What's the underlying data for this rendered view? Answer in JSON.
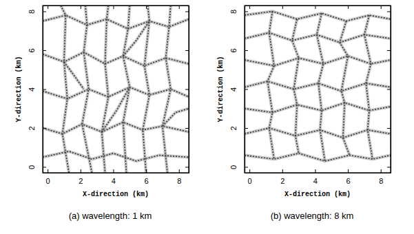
{
  "chart_data": [
    {
      "type": "line",
      "title": "(a) wavelength: 1 km",
      "xlabel": "X-direction (km)",
      "ylabel": "Y-direction (km)",
      "xlim": [
        -0.3,
        8.6
      ],
      "ylim": [
        -0.3,
        8.3
      ],
      "xticks": [
        0,
        2,
        4,
        6,
        8
      ],
      "yticks": [
        0,
        2,
        4,
        6,
        8
      ],
      "color": "#858585",
      "series": [
        {
          "x": [
            -0.3,
            1.1,
            2.4,
            3.6,
            4.9,
            6.2,
            7.4,
            8.6
          ],
          "values": [
            7.5,
            7.8,
            7.3,
            7.6,
            7.1,
            7.5,
            7.2,
            7.6
          ]
        },
        {
          "x": [
            -0.3,
            1.0,
            2.2,
            3.5,
            4.6,
            5.9,
            7.2,
            8.6
          ],
          "values": [
            5.8,
            5.4,
            5.9,
            5.3,
            5.7,
            5.2,
            5.6,
            5.3
          ]
        },
        {
          "x": [
            -0.3,
            1.2,
            2.5,
            3.7,
            5.0,
            6.2,
            7.5,
            8.6
          ],
          "values": [
            3.9,
            3.5,
            4.0,
            3.6,
            4.1,
            3.7,
            4.0,
            3.6
          ]
        },
        {
          "x": [
            -0.3,
            0.9,
            2.1,
            3.3,
            4.6,
            5.8,
            7.0,
            8.6
          ],
          "values": [
            2.0,
            1.7,
            2.2,
            1.8,
            2.3,
            1.9,
            2.1,
            1.8
          ]
        },
        {
          "x": [
            -0.3,
            1.3,
            2.7,
            4.0,
            5.4,
            6.8,
            8.6
          ],
          "values": [
            0.5,
            0.8,
            0.4,
            0.7,
            0.3,
            0.6,
            0.5
          ]
        },
        {
          "x": [
            0.8,
            1.1,
            1.0,
            1.2,
            0.9,
            1.3
          ],
          "values": [
            8.3,
            7.8,
            5.4,
            3.5,
            1.7,
            -0.3
          ]
        },
        {
          "x": [
            2.3,
            2.4,
            2.2,
            2.5,
            2.1,
            2.7
          ],
          "values": [
            8.3,
            7.3,
            5.9,
            4.0,
            2.2,
            -0.3
          ]
        },
        {
          "x": [
            3.7,
            3.6,
            3.5,
            3.7,
            3.3,
            3.5
          ],
          "values": [
            8.3,
            7.6,
            5.3,
            3.6,
            1.8,
            -0.3
          ]
        },
        {
          "x": [
            5.0,
            4.9,
            4.6,
            5.0,
            4.6,
            4.8
          ],
          "values": [
            8.3,
            7.1,
            5.7,
            4.1,
            2.3,
            -0.3
          ]
        },
        {
          "x": [
            6.1,
            6.2,
            5.9,
            6.2,
            5.8,
            6.0
          ],
          "values": [
            8.3,
            7.5,
            5.2,
            3.7,
            1.9,
            -0.3
          ]
        },
        {
          "x": [
            7.5,
            7.4,
            7.2,
            7.5,
            7.0,
            7.3
          ],
          "values": [
            8.3,
            7.2,
            5.6,
            4.0,
            2.1,
            -0.3
          ]
        },
        {
          "x": [
            1.0,
            1.7,
            2.2
          ],
          "values": [
            5.4,
            4.6,
            4.0
          ]
        },
        {
          "x": [
            4.6,
            5.4,
            6.2
          ],
          "values": [
            5.7,
            6.5,
            7.5
          ]
        },
        {
          "x": [
            3.3,
            4.2,
            5.0
          ],
          "values": [
            1.8,
            2.9,
            4.1
          ]
        },
        {
          "x": [
            7.0,
            7.8,
            8.6
          ],
          "values": [
            2.1,
            2.8,
            3.0
          ]
        }
      ]
    },
    {
      "type": "line",
      "title": "(b) wavelength: 8 km",
      "xlabel": "X-direction (km)",
      "ylabel": "Y-direction (km)",
      "xlim": [
        -0.3,
        8.6
      ],
      "ylim": [
        -0.3,
        8.3
      ],
      "xticks": [
        0,
        2,
        4,
        6,
        8
      ],
      "yticks": [
        0,
        2,
        4,
        6,
        8
      ],
      "color": "#858585",
      "series": [
        {
          "x": [
            -0.3,
            1.4,
            2.9,
            4.4,
            5.9,
            7.3,
            8.6
          ],
          "values": [
            7.8,
            8.0,
            7.6,
            7.9,
            7.5,
            7.8,
            7.6
          ]
        },
        {
          "x": [
            -0.3,
            1.2,
            2.6,
            4.1,
            5.5,
            7.0,
            8.6
          ],
          "values": [
            6.6,
            6.9,
            6.5,
            6.8,
            6.4,
            6.8,
            6.6
          ]
        },
        {
          "x": [
            -0.3,
            1.5,
            3.0,
            4.5,
            6.0,
            7.4,
            8.6
          ],
          "values": [
            5.5,
            5.2,
            5.6,
            5.3,
            5.7,
            5.3,
            5.5
          ]
        },
        {
          "x": [
            -0.3,
            1.1,
            2.7,
            4.2,
            5.6,
            7.1,
            8.6
          ],
          "values": [
            4.1,
            4.4,
            4.0,
            4.3,
            3.9,
            4.3,
            4.1
          ]
        },
        {
          "x": [
            -0.3,
            1.4,
            2.9,
            4.4,
            5.8,
            7.3,
            8.6
          ],
          "values": [
            3.0,
            2.8,
            3.2,
            2.9,
            3.3,
            2.9,
            3.1
          ]
        },
        {
          "x": [
            -0.3,
            1.2,
            2.8,
            4.3,
            5.7,
            7.2,
            8.6
          ],
          "values": [
            1.7,
            2.0,
            1.6,
            1.9,
            1.5,
            1.9,
            1.7
          ]
        },
        {
          "x": [
            -0.3,
            1.5,
            3.0,
            4.6,
            6.1,
            7.5,
            8.6
          ],
          "values": [
            0.6,
            0.4,
            0.7,
            0.3,
            0.6,
            0.4,
            0.6
          ]
        },
        {
          "x": [
            1.4,
            1.2,
            1.5,
            1.1,
            1.4,
            1.2,
            1.5
          ],
          "values": [
            8.0,
            6.9,
            5.2,
            4.4,
            2.8,
            2.0,
            0.4
          ]
        },
        {
          "x": [
            2.9,
            2.6,
            3.0,
            2.7,
            2.9,
            2.8,
            3.0
          ],
          "values": [
            7.6,
            6.5,
            5.6,
            4.0,
            3.2,
            1.6,
            0.7
          ]
        },
        {
          "x": [
            4.4,
            4.1,
            4.5,
            4.2,
            4.4,
            4.3,
            4.6
          ],
          "values": [
            7.9,
            6.8,
            5.3,
            4.3,
            2.9,
            1.9,
            0.3
          ]
        },
        {
          "x": [
            5.9,
            5.5,
            6.0,
            5.6,
            5.8,
            5.7,
            6.1
          ],
          "values": [
            7.5,
            6.4,
            5.7,
            3.9,
            3.3,
            1.5,
            0.6
          ]
        },
        {
          "x": [
            7.3,
            7.0,
            7.4,
            7.1,
            7.3,
            7.2,
            7.5
          ],
          "values": [
            7.8,
            6.8,
            5.3,
            4.3,
            2.9,
            1.9,
            0.4
          ]
        }
      ]
    }
  ]
}
